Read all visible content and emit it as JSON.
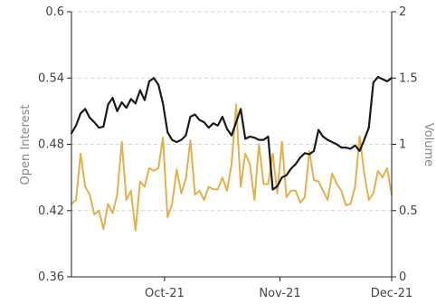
{
  "chart_data": {
    "type": "line",
    "x_ticks": [
      "Oct-21",
      "Nov-21",
      "Dec-21"
    ],
    "y_left": {
      "label": "Open Interest",
      "ticks": [
        "0.36",
        "0.42",
        "0.48",
        "0.54",
        "0.6"
      ],
      "range": [
        0.36,
        0.6
      ]
    },
    "y_right": {
      "label": "Volume",
      "ticks": [
        "0",
        "0.5",
        "1",
        "1.5",
        "2"
      ],
      "range": [
        0,
        2
      ]
    },
    "x_domain": [
      "2021-09-06",
      "2021-12-01"
    ],
    "grid": {
      "horizontal": true,
      "color": "#d7d7d7",
      "dash": "dashed"
    },
    "series": [
      {
        "axis": "left",
        "color": "#1a1a1a",
        "values": [
          0.49,
          0.497,
          0.508,
          0.512,
          0.504,
          0.5,
          0.495,
          0.496,
          0.516,
          0.522,
          0.51,
          0.518,
          0.513,
          0.521,
          0.517,
          0.529,
          0.52,
          0.537,
          0.54,
          0.534,
          0.517,
          0.491,
          0.484,
          0.482,
          0.484,
          0.488,
          0.505,
          0.507,
          0.502,
          0.5,
          0.495,
          0.499,
          0.497,
          0.505,
          0.494,
          0.488,
          0.5,
          0.512,
          0.485,
          0.487,
          0.486,
          0.484,
          0.484,
          0.487,
          0.439,
          0.442,
          0.45,
          0.452,
          0.458,
          0.462,
          0.468,
          0.472,
          0.471,
          0.474,
          0.493,
          0.487,
          0.484,
          0.482,
          0.48,
          0.477,
          0.477,
          0.476,
          0.479,
          0.474,
          0.484,
          0.495,
          0.536,
          0.541,
          0.539,
          0.537,
          0.54
        ]
      },
      {
        "axis": "right",
        "color": "#e3b04b",
        "values": [
          0.55,
          0.58,
          0.93,
          0.68,
          0.62,
          0.47,
          0.5,
          0.36,
          0.55,
          0.48,
          0.62,
          1.02,
          0.58,
          0.65,
          0.35,
          0.72,
          0.68,
          0.82,
          0.8,
          0.82,
          1.05,
          0.45,
          0.55,
          0.81,
          0.63,
          0.74,
          1.03,
          0.62,
          0.65,
          0.58,
          0.68,
          0.66,
          0.66,
          0.75,
          0.65,
          0.85,
          1.3,
          0.68,
          0.93,
          0.85,
          0.58,
          1.0,
          0.7,
          0.7,
          0.93,
          0.63,
          1.02,
          0.6,
          0.65,
          0.65,
          0.56,
          0.6,
          0.95,
          0.73,
          0.72,
          0.65,
          0.58,
          0.78,
          0.7,
          0.65,
          0.54,
          0.55,
          0.68,
          1.06,
          0.78,
          0.58,
          0.63,
          0.8,
          0.75,
          0.82,
          0.62
        ]
      }
    ]
  }
}
